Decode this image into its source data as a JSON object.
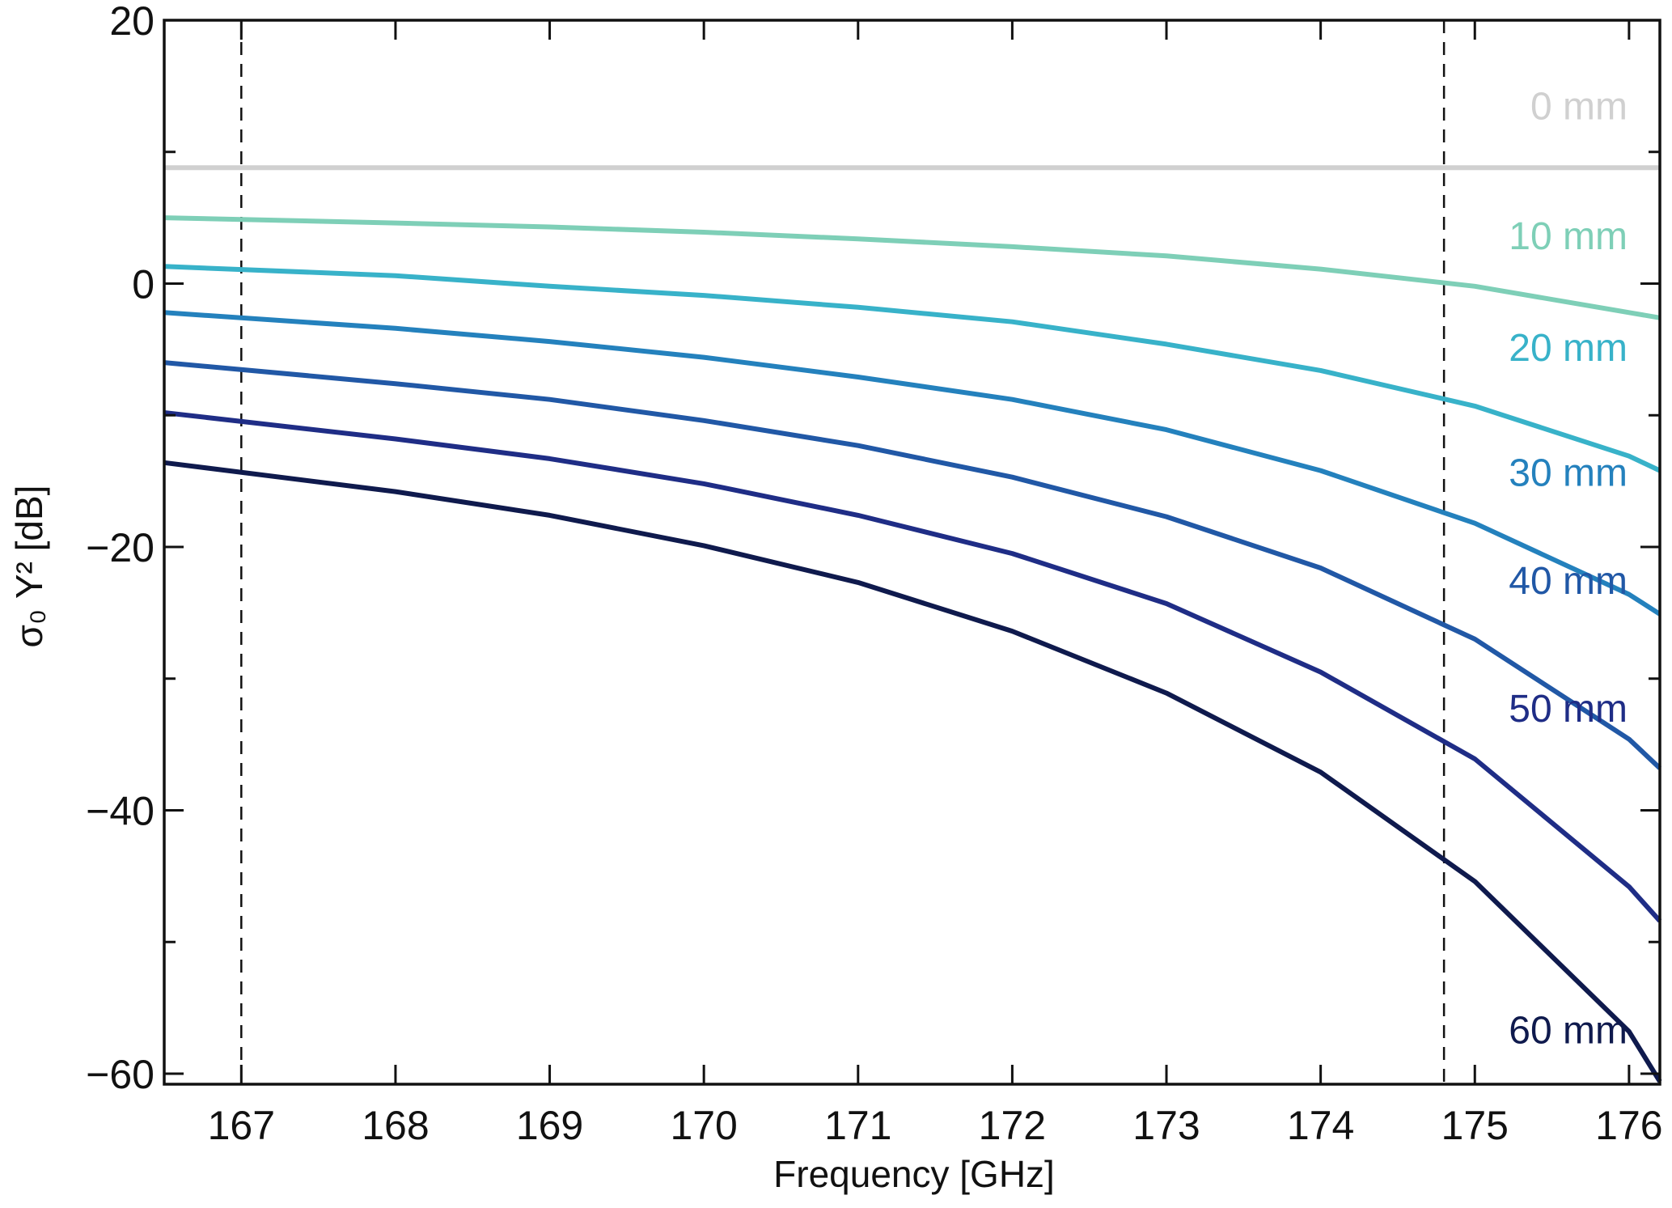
{
  "chart_data": {
    "type": "line",
    "title": "",
    "xlabel": "Frequency [GHz]",
    "ylabel": "σ₀ Y² [dB]",
    "xlim": [
      166.5,
      176.2
    ],
    "ylim": [
      -60.8,
      20
    ],
    "xticks": [
      167,
      168,
      169,
      170,
      171,
      172,
      173,
      174,
      175,
      176
    ],
    "yticks": [
      -60,
      -40,
      -20,
      0,
      20
    ],
    "ytick_labels": [
      "−60",
      "−40",
      "−20",
      "0",
      "20"
    ],
    "vlines": [
      167.0,
      174.8
    ],
    "x": [
      166.5,
      168,
      169,
      170,
      171,
      172,
      173,
      174,
      175,
      176,
      176.2
    ],
    "series": [
      {
        "name": "0 mm",
        "color": "#d0d0d0",
        "values": [
          8.8,
          8.8,
          8.8,
          8.8,
          8.8,
          8.8,
          8.8,
          8.8,
          8.8,
          8.8,
          8.8
        ]
      },
      {
        "name": "10 mm",
        "color": "#7ecfb7",
        "values": [
          5.0,
          4.6,
          4.3,
          3.9,
          3.4,
          2.8,
          2.1,
          1.1,
          -0.2,
          -2.2,
          -2.6
        ]
      },
      {
        "name": "20 mm",
        "color": "#38b2c9",
        "values": [
          1.3,
          0.6,
          -0.2,
          -0.9,
          -1.8,
          -2.9,
          -4.6,
          -6.6,
          -9.3,
          -13.1,
          -14.2
        ]
      },
      {
        "name": "30 mm",
        "color": "#2481bd",
        "values": [
          -2.2,
          -3.4,
          -4.4,
          -5.6,
          -7.1,
          -8.8,
          -11.1,
          -14.2,
          -18.2,
          -23.6,
          -25.1
        ]
      },
      {
        "name": "40 mm",
        "color": "#2158a6",
        "values": [
          -6.0,
          -7.6,
          -8.8,
          -10.4,
          -12.3,
          -14.7,
          -17.7,
          -21.6,
          -27.0,
          -34.6,
          -36.8
        ]
      },
      {
        "name": "50 mm",
        "color": "#1f2d86",
        "values": [
          -9.8,
          -11.8,
          -13.3,
          -15.2,
          -17.6,
          -20.5,
          -24.3,
          -29.5,
          -36.1,
          -45.8,
          -48.4
        ]
      },
      {
        "name": "60 mm",
        "color": "#0f1a4d",
        "values": [
          -13.6,
          -15.8,
          -17.6,
          -19.9,
          -22.7,
          -26.4,
          -31.1,
          -37.1,
          -45.4,
          -56.8,
          -60.6
        ]
      }
    ]
  }
}
